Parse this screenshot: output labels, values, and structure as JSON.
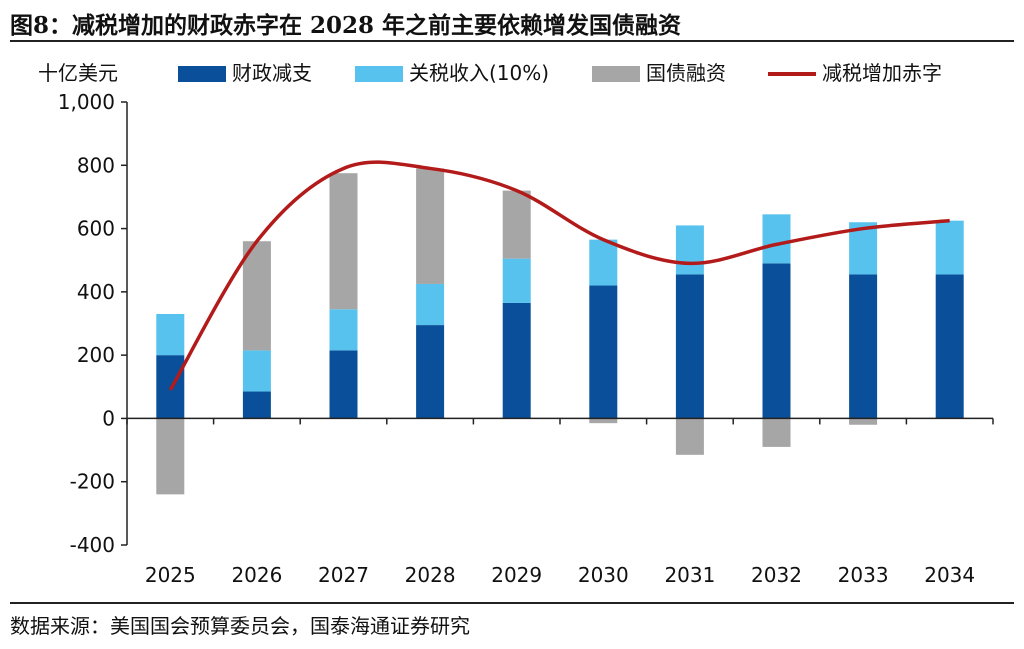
{
  "title": "图8：减税增加的财政赤字在 2028 年之前主要依赖增发国债融资",
  "source": "数据来源：美国国会预算委员会，国泰海通证券研究",
  "colors": {
    "fiscal_cut": "#0a4f99",
    "tariff": "#57c2ee",
    "bonds": "#a6a6a6",
    "deficit_line": "#b31b1b",
    "axis": "#222222"
  },
  "chart_data": {
    "type": "bar",
    "stacked": true,
    "unit": "十亿美元",
    "categories": [
      "2025",
      "2026",
      "2027",
      "2028",
      "2029",
      "2030",
      "2031",
      "2032",
      "2033",
      "2034"
    ],
    "ylim": [
      -400,
      1000
    ],
    "yticks": [
      1000,
      800,
      600,
      400,
      200,
      0,
      -200,
      -400
    ],
    "ytick_labels": [
      "1,000",
      "800",
      "600",
      "400",
      "200",
      "0",
      "-200",
      "-400"
    ],
    "series": [
      {
        "name": "财政减支",
        "kind": "bar",
        "values": [
          200,
          85,
          215,
          295,
          365,
          420,
          455,
          490,
          455,
          455
        ]
      },
      {
        "name": "关税收入(10%)",
        "kind": "bar",
        "values": [
          130,
          130,
          130,
          130,
          140,
          145,
          155,
          155,
          165,
          170
        ]
      },
      {
        "name": "国债融资",
        "kind": "bar",
        "values": [
          -240,
          345,
          430,
          365,
          215,
          -15,
          -115,
          -90,
          -20,
          0
        ]
      },
      {
        "name": "减税增加赤字",
        "kind": "line",
        "values": [
          90,
          560,
          790,
          790,
          720,
          565,
          490,
          550,
          600,
          625
        ]
      }
    ],
    "legend": [
      "财政减支",
      "关税收入(10%)",
      "国债融资",
      "减税增加赤字"
    ]
  }
}
